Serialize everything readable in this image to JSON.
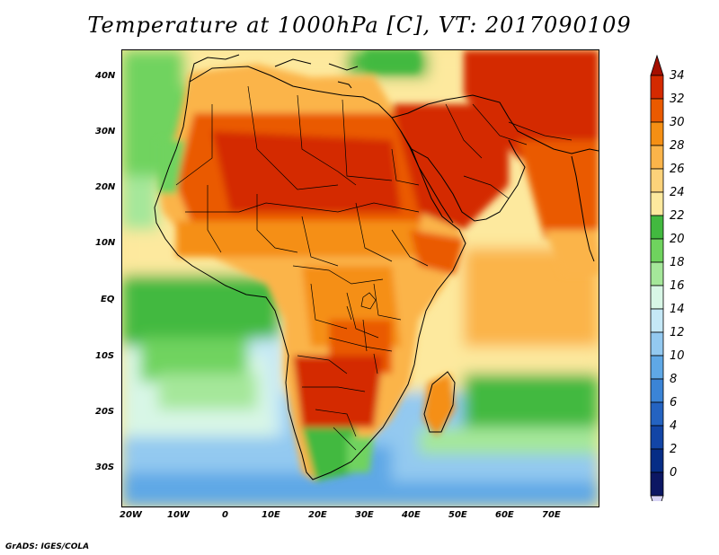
{
  "title": "Temperature at 1000hPa [C], VT: 2017090109",
  "credit": "GrADS: IGES/COLA",
  "map": {
    "variable": "Temperature at 1000hPa",
    "units": "C",
    "lon_range": [
      -23,
      80
    ],
    "lat_range": [
      -37,
      45
    ],
    "lon_ticks": [
      "20W",
      "10W",
      "0",
      "10E",
      "20E",
      "30E",
      "40E",
      "50E",
      "60E",
      "70E"
    ],
    "lat_ticks": [
      "40N",
      "30N",
      "20N",
      "10N",
      "EQ",
      "10S",
      "20S",
      "30S"
    ]
  },
  "colorbar": {
    "labels": [
      "34",
      "32",
      "30",
      "28",
      "26",
      "24",
      "22",
      "20",
      "18",
      "16",
      "14",
      "12",
      "10",
      "8",
      "6",
      "4",
      "2",
      "0"
    ],
    "colors": [
      "#a50f00",
      "#d42a00",
      "#ea5a00",
      "#f58f14",
      "#fbb44a",
      "#fcd27a",
      "#fde99e",
      "#42b93f",
      "#6fd35e",
      "#a5e79a",
      "#d8f6e6",
      "#c5e8f6",
      "#93c9f0",
      "#5fa8e6",
      "#3b84d6",
      "#2463c1",
      "#1245a6",
      "#062d86",
      "#0c1763"
    ],
    "arrow_top_color": "#a50f00",
    "arrow_bottom_color": "#d8d4f5"
  }
}
